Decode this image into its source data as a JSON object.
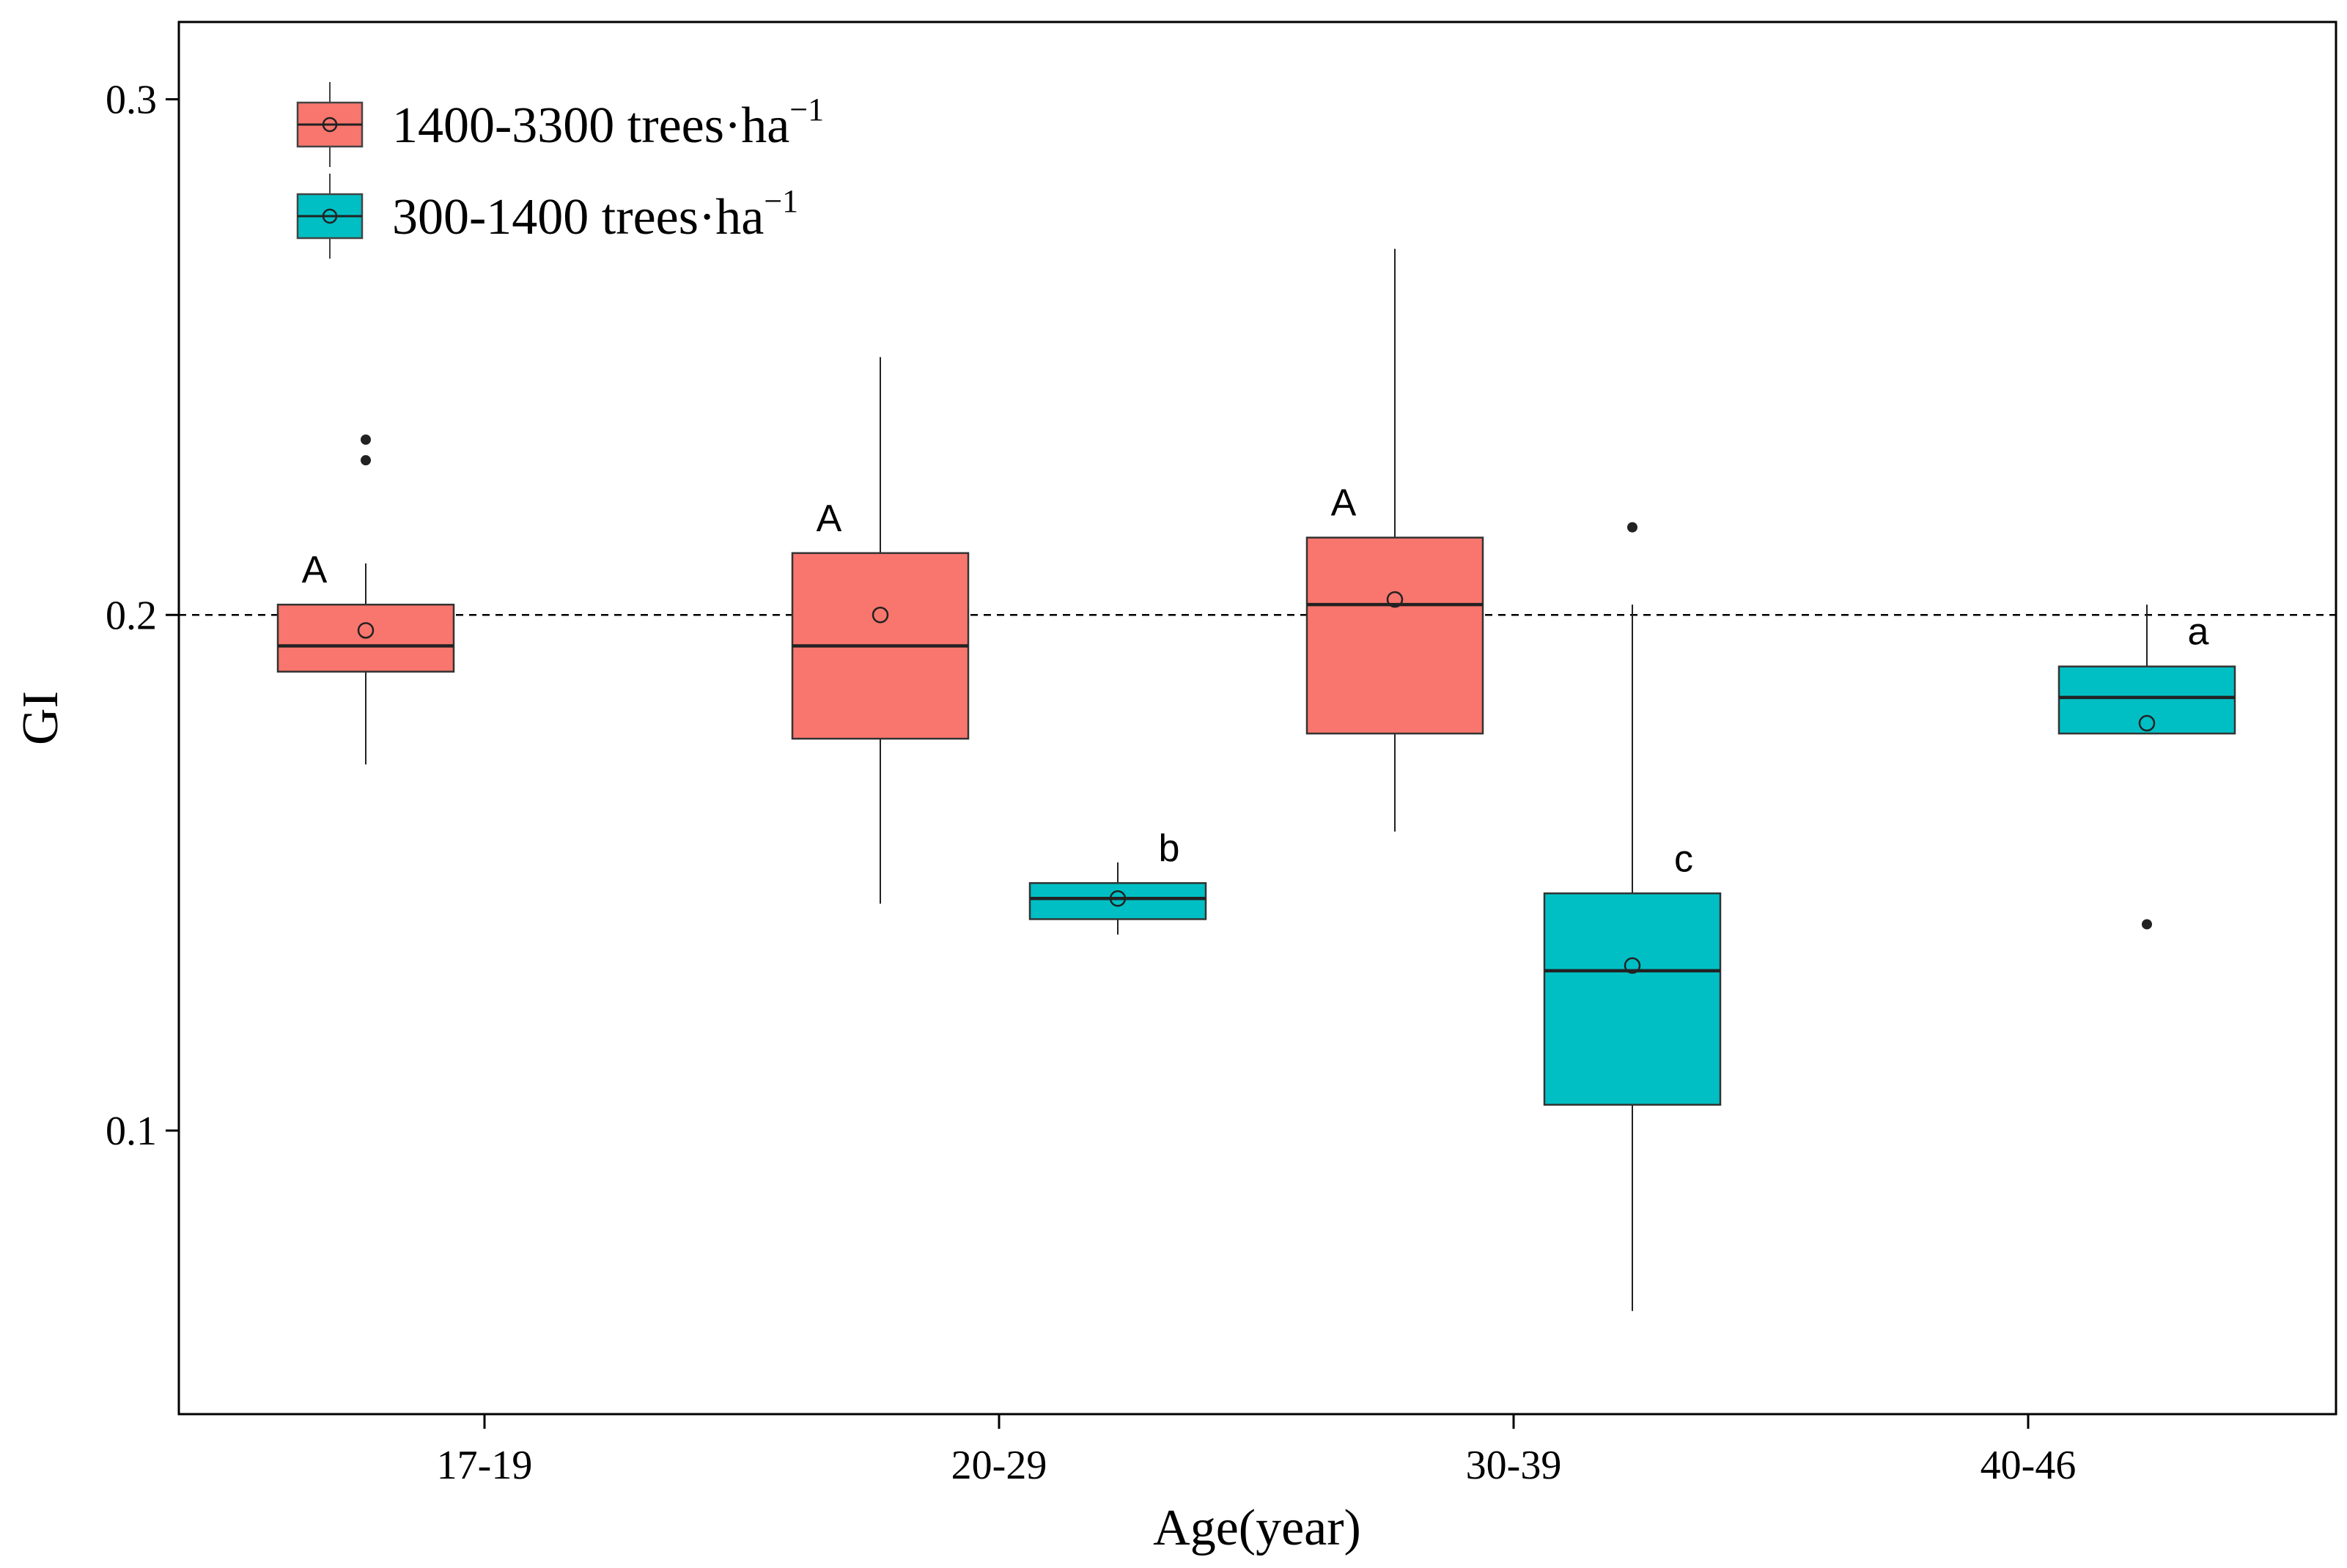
{
  "chart_data": {
    "type": "box",
    "xlabel": "Age(year)",
    "ylabel": "GI",
    "ylim": [
      0.045,
      0.315
    ],
    "yticks": [
      0.1,
      0.2,
      0.3
    ],
    "ytick_labels": [
      "0.1",
      "0.2",
      "0.3"
    ],
    "categories": [
      "17-19",
      "20-29",
      "30-39",
      "40-46"
    ],
    "reference_line": {
      "y": 0.2,
      "style": "dashed"
    },
    "grid": false,
    "legend_position": "top-left",
    "series": [
      {
        "name": "1400-3300 trees·ha",
        "name_superscript": "−1",
        "color": "#F8766D",
        "boxes": [
          {
            "category": "17-19",
            "whisker_low": 0.171,
            "q1": 0.189,
            "median": 0.194,
            "q3": 0.202,
            "whisker_high": 0.21,
            "mean": 0.197,
            "outliers": [
              0.23,
              0.234
            ],
            "sig": "A"
          },
          {
            "category": "20-29",
            "whisker_low": 0.144,
            "q1": 0.176,
            "median": 0.194,
            "q3": 0.212,
            "whisker_high": 0.25,
            "mean": 0.2,
            "outliers": [],
            "sig": "A"
          },
          {
            "category": "30-39",
            "whisker_low": 0.158,
            "q1": 0.177,
            "median": 0.202,
            "q3": 0.215,
            "whisker_high": 0.271,
            "mean": 0.203,
            "outliers": [],
            "sig": "A"
          }
        ]
      },
      {
        "name": "300-1400   trees·ha",
        "name_superscript": "−1",
        "color": "#00BFC4",
        "boxes": [
          {
            "category": "20-29",
            "whisker_low": 0.138,
            "q1": 0.141,
            "median": 0.145,
            "q3": 0.148,
            "whisker_high": 0.152,
            "mean": 0.145,
            "outliers": [],
            "sig": "b"
          },
          {
            "category": "30-39",
            "whisker_low": 0.065,
            "q1": 0.105,
            "median": 0.131,
            "q3": 0.146,
            "whisker_high": 0.202,
            "mean": 0.132,
            "outliers": [
              0.217
            ],
            "sig": "c"
          },
          {
            "category": "40-46",
            "whisker_low": 0.177,
            "q1": 0.177,
            "median": 0.184,
            "q3": 0.19,
            "whisker_high": 0.202,
            "mean": 0.179,
            "outliers": [
              0.14
            ],
            "sig": "a"
          }
        ]
      }
    ]
  }
}
